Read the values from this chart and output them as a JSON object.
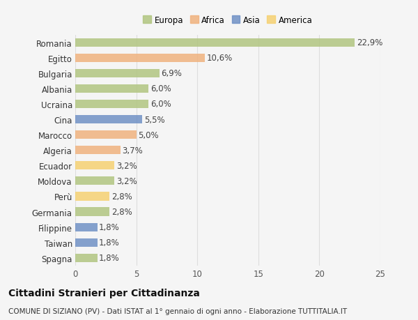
{
  "categories": [
    "Romania",
    "Egitto",
    "Bulgaria",
    "Albania",
    "Ucraina",
    "Cina",
    "Marocco",
    "Algeria",
    "Ecuador",
    "Moldova",
    "Perù",
    "Germania",
    "Filippine",
    "Taiwan",
    "Spagna"
  ],
  "values": [
    22.9,
    10.6,
    6.9,
    6.0,
    6.0,
    5.5,
    5.0,
    3.7,
    3.2,
    3.2,
    2.8,
    2.8,
    1.8,
    1.8,
    1.8
  ],
  "labels": [
    "22,9%",
    "10,6%",
    "6,9%",
    "6,0%",
    "6,0%",
    "5,5%",
    "5,0%",
    "3,7%",
    "3,2%",
    "3,2%",
    "2,8%",
    "2,8%",
    "1,8%",
    "1,8%",
    "1,8%"
  ],
  "colors": [
    "#afc47d",
    "#f0b07a",
    "#afc47d",
    "#afc47d",
    "#afc47d",
    "#6b8dc4",
    "#f0b07a",
    "#f0b07a",
    "#f5d06e",
    "#afc47d",
    "#f5d06e",
    "#afc47d",
    "#6b8dc4",
    "#6b8dc4",
    "#afc47d"
  ],
  "continent_colors": {
    "Europa": "#afc47d",
    "Africa": "#f0b07a",
    "Asia": "#6b8dc4",
    "America": "#f5d06e"
  },
  "xlim": [
    0,
    25
  ],
  "xticks": [
    0,
    5,
    10,
    15,
    20,
    25
  ],
  "title": "Cittadini Stranieri per Cittadinanza",
  "subtitle": "COMUNE DI SIZIANO (PV) - Dati ISTAT al 1° gennaio di ogni anno - Elaborazione TUTTITALIA.IT",
  "bg_color": "#f5f5f5",
  "bar_height": 0.55,
  "grid_color": "#dddddd",
  "label_fontsize": 8.5,
  "tick_fontsize": 8.5,
  "title_fontsize": 10,
  "subtitle_fontsize": 7.5
}
